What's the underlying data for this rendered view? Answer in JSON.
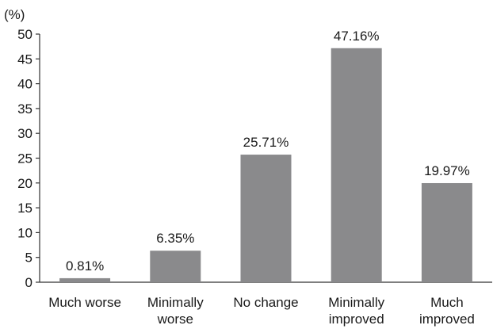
{
  "chart_data": {
    "type": "bar",
    "y_unit_label": "(%)",
    "categories": [
      [
        "Much worse"
      ],
      [
        "Minimally",
        "worse"
      ],
      [
        "No change"
      ],
      [
        "Minimally",
        "improved"
      ],
      [
        "Much",
        "improved"
      ]
    ],
    "values": [
      0.81,
      6.35,
      25.71,
      47.16,
      19.97
    ],
    "data_labels": [
      "0.81%",
      "6.35%",
      "25.71%",
      "47.16%",
      "19.97%"
    ],
    "ylim": [
      0,
      50
    ],
    "yticks": [
      0,
      5,
      10,
      15,
      20,
      25,
      30,
      35,
      40,
      45,
      50
    ],
    "grid": false,
    "bar_color": "#8a8a8c"
  }
}
